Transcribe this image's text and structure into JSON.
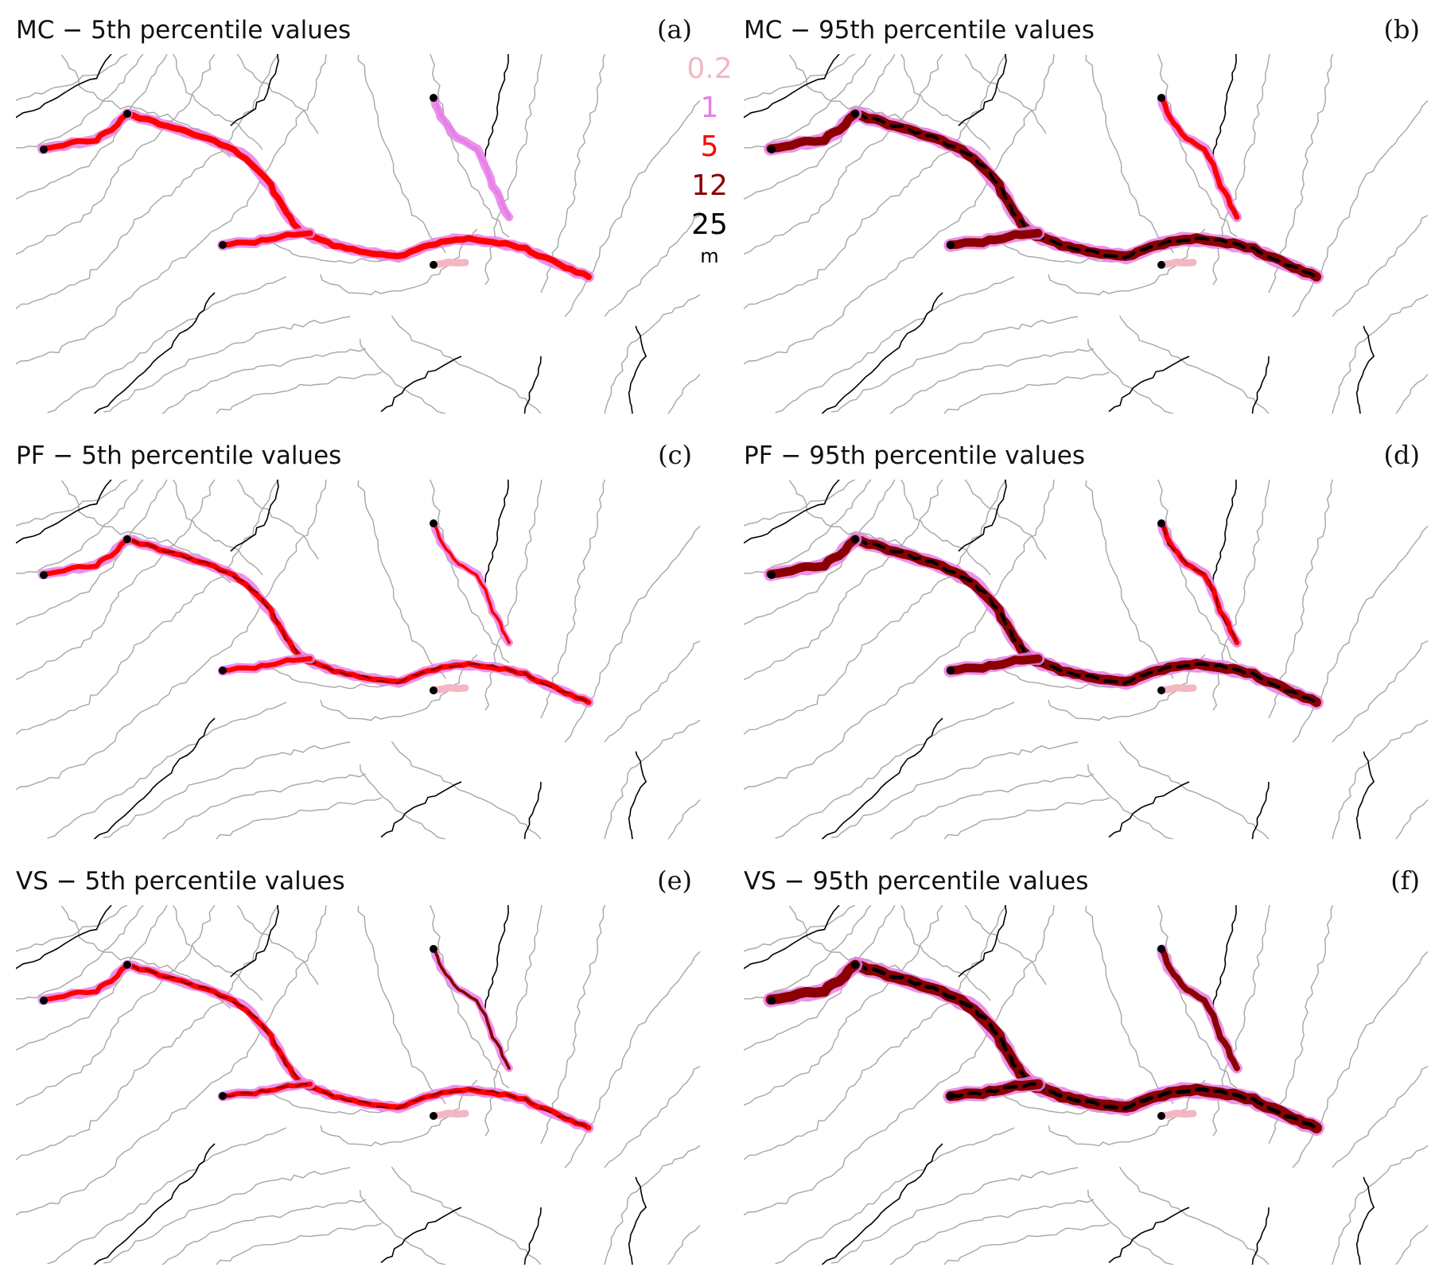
{
  "panels": [
    {
      "title": "MC − 5th percentile values",
      "letter": "(a)"
    },
    {
      "title": "MC − 95th percentile values",
      "letter": "(b)"
    },
    {
      "title": "PF − 5th percentile values",
      "letter": "(c)"
    },
    {
      "title": "PF − 95th percentile values",
      "letter": "(d)"
    },
    {
      "title": "VS − 5th percentile values",
      "letter": "(e)"
    },
    {
      "title": "VS − 95th percentile values",
      "letter": "(f)"
    }
  ],
  "legend": {
    "levels": [
      {
        "label": "0.2",
        "color": "#f4b6c2"
      },
      {
        "label": "1",
        "color": "#e67fe6"
      },
      {
        "label": "5",
        "color": "#ff0000"
      },
      {
        "label": "12",
        "color": "#8b0000"
      },
      {
        "label": "25",
        "color": "#000000"
      }
    ],
    "unit": "m"
  },
  "colors": {
    "contour": "#a6a6a6",
    "contour_index": "#000000"
  }
}
